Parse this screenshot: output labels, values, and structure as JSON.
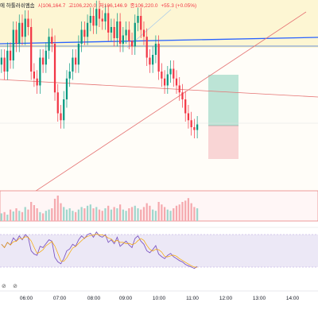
{
  "legend": {
    "title": "에 하툴러쉬엠솜",
    "open": "시106,164.7",
    "high": "고106,220.0",
    "low": "저106,146.9",
    "close": "종106,220.0",
    "change": "+55.3 (+0.05%)"
  },
  "toolbar_icons": [
    "eye-off-icon",
    "eye-off-icon"
  ],
  "xaxis": {
    "ticks": [
      "06:00",
      "07:00",
      "08:00",
      "09:00",
      "10:00",
      "11:00",
      "12:00",
      "13:00",
      "14:00"
    ]
  },
  "colors": {
    "up": "#089981",
    "down": "#f23645",
    "trendline_blue": "#2962ff",
    "trendline_red": "#f23645",
    "rsi": "#7e57c2",
    "rsi_band": "#ece8f6",
    "highlight_yellow": "#fdf6d3",
    "position_profit": "#9fd9c8",
    "position_loss": "#f7c3c6"
  },
  "chart_data": {
    "type": "candlestick",
    "x": [
      "05:30",
      "05:35",
      "05:40",
      "05:45",
      "05:50",
      "05:55",
      "06:00",
      "06:05",
      "06:10",
      "06:15",
      "06:20",
      "06:25",
      "06:30",
      "06:35",
      "06:40",
      "06:45",
      "06:50",
      "06:55",
      "07:00",
      "07:05",
      "07:10",
      "07:15",
      "07:20",
      "07:25",
      "07:30",
      "07:35",
      "07:40",
      "07:45",
      "07:50",
      "07:55",
      "08:00",
      "08:05",
      "08:10",
      "08:15",
      "08:20",
      "08:25",
      "08:30",
      "08:35",
      "08:40",
      "08:45",
      "08:50",
      "08:55",
      "09:00",
      "09:05",
      "09:10",
      "09:15",
      "09:20",
      "09:25",
      "09:30",
      "09:35",
      "09:40",
      "09:45",
      "09:50",
      "09:55",
      "10:00",
      "10:05",
      "10:10",
      "10:15",
      "10:20",
      "10:25",
      "10:30",
      "10:35",
      "10:40",
      "10:45",
      "10:50",
      "10:55",
      "11:00"
    ],
    "close": [
      70,
      60,
      75,
      68,
      90,
      80,
      95,
      85,
      98,
      92,
      60,
      55,
      50,
      70,
      65,
      75,
      85,
      80,
      45,
      30,
      25,
      40,
      55,
      60,
      70,
      65,
      80,
      90,
      85,
      95,
      100,
      93,
      105,
      98,
      96,
      102,
      88,
      92,
      84,
      96,
      80,
      86,
      90,
      82,
      78,
      95,
      100,
      90,
      85,
      70,
      65,
      72,
      80,
      60,
      55,
      50,
      58,
      62,
      55,
      50,
      45,
      40,
      30,
      25,
      20,
      18,
      22
    ],
    "series_note": "price index (relative, 0-100)",
    "rsi": [
      55,
      50,
      58,
      54,
      65,
      60,
      68,
      62,
      70,
      66,
      45,
      40,
      38,
      52,
      50,
      56,
      62,
      60,
      35,
      28,
      25,
      33,
      45,
      48,
      55,
      52,
      62,
      68,
      64,
      70,
      72,
      66,
      74,
      68,
      66,
      70,
      58,
      62,
      56,
      66,
      52,
      56,
      60,
      54,
      50,
      64,
      68,
      60,
      55,
      45,
      42,
      47,
      53,
      40,
      36,
      33,
      38,
      41,
      36,
      33,
      30,
      28,
      24,
      22,
      20,
      18,
      21
    ],
    "volume": [
      12,
      14,
      10,
      18,
      15,
      20,
      16,
      14,
      22,
      18,
      30,
      25,
      20,
      14,
      12,
      16,
      18,
      20,
      35,
      40,
      28,
      22,
      18,
      20,
      16,
      14,
      18,
      22,
      20,
      24,
      26,
      20,
      22,
      18,
      16,
      20,
      24,
      18,
      22,
      20,
      26,
      18,
      16,
      20,
      22,
      24,
      20,
      18,
      22,
      28,
      24,
      18,
      16,
      30,
      26,
      22,
      18,
      16,
      20,
      24,
      26,
      30,
      32,
      36,
      28,
      22,
      20
    ],
    "overlays": {
      "trendlines": [
        {
          "color": "#2962ff"
        },
        {
          "color": "#f23645"
        },
        {
          "color": "#f23645"
        }
      ],
      "rsi_levels": [
        70,
        30
      ]
    }
  }
}
